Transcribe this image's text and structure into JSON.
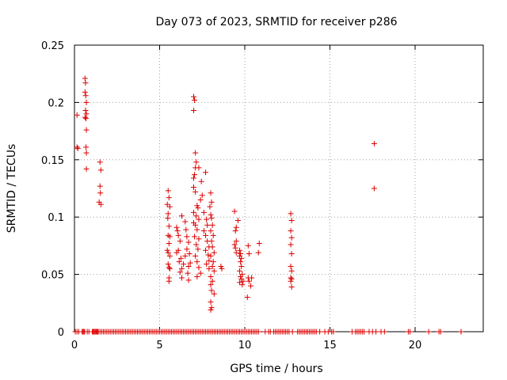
{
  "chart_data": {
    "type": "scatter",
    "title": "Day 073 of 2023, SRMTID for receiver p286",
    "xlabel": "GPS time / hours",
    "ylabel": "SRMTID / TECUs",
    "xlim": [
      0,
      24
    ],
    "ylim": [
      0,
      0.25
    ],
    "xticks": [
      0,
      5,
      10,
      15,
      20
    ],
    "yticks": [
      0,
      0.05,
      0.1,
      0.15,
      0.2,
      0.25
    ],
    "xtick_labels": [
      "0",
      "5",
      "10",
      "15",
      "20"
    ],
    "ytick_labels": [
      "0",
      "0.05",
      "0.1",
      "0.15",
      "0.2",
      "0.25"
    ],
    "grid": true,
    "marker": "plus",
    "series": [
      {
        "name": "SRMTID",
        "color": "#dd0000",
        "points": [
          [
            0.15,
            0.189
          ],
          [
            0.15,
            0.161
          ],
          [
            0.2,
            0.16
          ],
          [
            0.62,
            0.221
          ],
          [
            0.65,
            0.217
          ],
          [
            0.62,
            0.209
          ],
          [
            0.66,
            0.206
          ],
          [
            0.7,
            0.2
          ],
          [
            0.65,
            0.193
          ],
          [
            0.7,
            0.19
          ],
          [
            0.62,
            0.187
          ],
          [
            0.68,
            0.186
          ],
          [
            0.7,
            0.176
          ],
          [
            0.68,
            0.161
          ],
          [
            0.7,
            0.156
          ],
          [
            0.7,
            0.142
          ],
          [
            1.5,
            0.148
          ],
          [
            1.55,
            0.141
          ],
          [
            1.5,
            0.127
          ],
          [
            1.52,
            0.121
          ],
          [
            1.45,
            0.113
          ],
          [
            1.55,
            0.111
          ],
          [
            5.5,
            0.123
          ],
          [
            5.55,
            0.117
          ],
          [
            5.45,
            0.111
          ],
          [
            5.6,
            0.109
          ],
          [
            5.5,
            0.103
          ],
          [
            5.48,
            0.099
          ],
          [
            5.55,
            0.092
          ],
          [
            5.5,
            0.084
          ],
          [
            5.6,
            0.083
          ],
          [
            5.55,
            0.077
          ],
          [
            5.45,
            0.071
          ],
          [
            5.5,
            0.069
          ],
          [
            5.6,
            0.066
          ],
          [
            5.5,
            0.059
          ],
          [
            5.55,
            0.056
          ],
          [
            5.6,
            0.055
          ],
          [
            5.55,
            0.047
          ],
          [
            5.55,
            0.044
          ],
          [
            6.0,
            0.091
          ],
          [
            6.05,
            0.088
          ],
          [
            6.1,
            0.084
          ],
          [
            6.2,
            0.079
          ],
          [
            6.1,
            0.071
          ],
          [
            6.0,
            0.069
          ],
          [
            6.25,
            0.064
          ],
          [
            6.15,
            0.061
          ],
          [
            6.3,
            0.055
          ],
          [
            6.2,
            0.052
          ],
          [
            6.3,
            0.047
          ],
          [
            6.5,
            0.066
          ],
          [
            6.4,
            0.059
          ],
          [
            6.3,
            0.101
          ],
          [
            6.5,
            0.096
          ],
          [
            6.55,
            0.089
          ],
          [
            6.6,
            0.083
          ],
          [
            6.7,
            0.078
          ],
          [
            6.6,
            0.072
          ],
          [
            6.75,
            0.068
          ],
          [
            6.7,
            0.057
          ],
          [
            6.65,
            0.051
          ],
          [
            6.7,
            0.045
          ],
          [
            6.8,
            0.06
          ],
          [
            7.0,
            0.205
          ],
          [
            7.05,
            0.202
          ],
          [
            7.0,
            0.193
          ],
          [
            7.1,
            0.156
          ],
          [
            7.15,
            0.148
          ],
          [
            7.1,
            0.143
          ],
          [
            7.05,
            0.137
          ],
          [
            7.0,
            0.134
          ],
          [
            7.0,
            0.126
          ],
          [
            7.1,
            0.122
          ],
          [
            7.2,
            0.11
          ],
          [
            7.25,
            0.108
          ],
          [
            7.0,
            0.104
          ],
          [
            7.15,
            0.101
          ],
          [
            7.3,
            0.098
          ],
          [
            7.0,
            0.095
          ],
          [
            7.1,
            0.093
          ],
          [
            7.2,
            0.089
          ],
          [
            7.05,
            0.083
          ],
          [
            7.3,
            0.081
          ],
          [
            7.15,
            0.076
          ],
          [
            7.25,
            0.072
          ],
          [
            7.1,
            0.066
          ],
          [
            7.2,
            0.061
          ],
          [
            7.3,
            0.056
          ],
          [
            7.4,
            0.051
          ],
          [
            7.2,
            0.048
          ],
          [
            7.3,
            0.143
          ],
          [
            7.45,
            0.131
          ],
          [
            7.5,
            0.119
          ],
          [
            7.4,
            0.115
          ],
          [
            7.7,
            0.139
          ],
          [
            7.6,
            0.104
          ],
          [
            7.75,
            0.098
          ],
          [
            7.8,
            0.093
          ],
          [
            7.6,
            0.088
          ],
          [
            7.7,
            0.084
          ],
          [
            7.8,
            0.079
          ],
          [
            7.9,
            0.074
          ],
          [
            7.7,
            0.071
          ],
          [
            7.85,
            0.067
          ],
          [
            7.9,
            0.062
          ],
          [
            7.75,
            0.059
          ],
          [
            7.9,
            0.055
          ],
          [
            8.0,
            0.121
          ],
          [
            8.05,
            0.113
          ],
          [
            7.95,
            0.109
          ],
          [
            8.0,
            0.102
          ],
          [
            8.05,
            0.099
          ],
          [
            8.1,
            0.093
          ],
          [
            8.0,
            0.088
          ],
          [
            8.15,
            0.084
          ],
          [
            8.05,
            0.079
          ],
          [
            8.1,
            0.074
          ],
          [
            8.2,
            0.069
          ],
          [
            8.0,
            0.066
          ],
          [
            8.15,
            0.061
          ],
          [
            8.1,
            0.057
          ],
          [
            8.2,
            0.053
          ],
          [
            8.0,
            0.048
          ],
          [
            8.1,
            0.044
          ],
          [
            8.0,
            0.041
          ],
          [
            8.05,
            0.036
          ],
          [
            8.2,
            0.033
          ],
          [
            8.0,
            0.026
          ],
          [
            8.05,
            0.021
          ],
          [
            8.0,
            0.019
          ],
          [
            8.6,
            0.057
          ],
          [
            8.65,
            0.055
          ],
          [
            9.4,
            0.105
          ],
          [
            9.5,
            0.091
          ],
          [
            9.45,
            0.088
          ],
          [
            9.5,
            0.079
          ],
          [
            9.4,
            0.076
          ],
          [
            9.45,
            0.073
          ],
          [
            9.5,
            0.069
          ],
          [
            9.6,
            0.097
          ],
          [
            9.7,
            0.071
          ],
          [
            9.75,
            0.068
          ],
          [
            9.7,
            0.066
          ],
          [
            9.8,
            0.064
          ],
          [
            9.75,
            0.061
          ],
          [
            9.8,
            0.057
          ],
          [
            9.7,
            0.053
          ],
          [
            9.85,
            0.05
          ],
          [
            9.75,
            0.048
          ],
          [
            9.8,
            0.046
          ],
          [
            9.9,
            0.044
          ],
          [
            9.7,
            0.043
          ],
          [
            9.85,
            0.041
          ],
          [
            10.2,
            0.075
          ],
          [
            10.25,
            0.068
          ],
          [
            10.2,
            0.047
          ],
          [
            10.25,
            0.044
          ],
          [
            10.15,
            0.03
          ],
          [
            10.4,
            0.047
          ],
          [
            10.35,
            0.04
          ],
          [
            10.85,
            0.077
          ],
          [
            10.8,
            0.069
          ],
          [
            12.7,
            0.103
          ],
          [
            12.75,
            0.097
          ],
          [
            12.7,
            0.088
          ],
          [
            12.75,
            0.082
          ],
          [
            12.7,
            0.076
          ],
          [
            12.75,
            0.068
          ],
          [
            12.7,
            0.057
          ],
          [
            12.75,
            0.053
          ],
          [
            12.7,
            0.047
          ],
          [
            12.75,
            0.046
          ],
          [
            12.7,
            0.044
          ],
          [
            12.75,
            0.039
          ],
          [
            17.6,
            0.164
          ],
          [
            17.6,
            0.125
          ]
        ],
        "zero_x": [
          0.05,
          0.15,
          0.25,
          0.45,
          0.5,
          0.55,
          0.6,
          0.75,
          0.85,
          1.05,
          1.1,
          1.15,
          1.2,
          1.25,
          1.3,
          1.35,
          1.4,
          1.5,
          1.6,
          1.7,
          1.8,
          1.9,
          2.0,
          2.1,
          2.2,
          2.3,
          2.4,
          2.5,
          2.6,
          2.7,
          2.8,
          2.9,
          3.0,
          3.1,
          3.2,
          3.3,
          3.4,
          3.5,
          3.6,
          3.7,
          3.8,
          3.9,
          4.0,
          4.1,
          4.2,
          4.3,
          4.4,
          4.5,
          4.6,
          4.7,
          4.8,
          4.9,
          5.0,
          5.1,
          5.2,
          5.3,
          5.4,
          5.5,
          5.6,
          5.7,
          5.8,
          5.9,
          6.0,
          6.1,
          6.2,
          6.3,
          6.4,
          6.5,
          6.6,
          6.7,
          6.8,
          6.9,
          7.0,
          7.1,
          7.2,
          7.3,
          7.4,
          7.5,
          7.6,
          7.7,
          7.8,
          7.9,
          8.0,
          8.1,
          8.2,
          8.3,
          8.4,
          8.5,
          8.6,
          8.7,
          8.8,
          8.9,
          9.0,
          9.1,
          9.2,
          9.3,
          9.4,
          9.5,
          9.6,
          9.7,
          9.8,
          9.9,
          10.0,
          10.1,
          10.2,
          10.3,
          10.4,
          10.5,
          10.6,
          10.7,
          10.8,
          11.2,
          11.4,
          11.5,
          11.7,
          11.8,
          11.9,
          12.0,
          12.1,
          12.2,
          12.3,
          12.4,
          12.5,
          12.6,
          12.8,
          13.1,
          13.2,
          13.3,
          13.4,
          13.5,
          13.6,
          13.7,
          13.8,
          13.9,
          14.0,
          14.1,
          14.2,
          14.4,
          14.7,
          14.9,
          15.1,
          15.2,
          16.3,
          16.5,
          16.6,
          16.7,
          16.8,
          16.9,
          17.0,
          17.3,
          17.5,
          17.7,
          18.0,
          18.2,
          19.6,
          19.7,
          20.8,
          21.4,
          21.5,
          22.7
        ]
      }
    ]
  }
}
